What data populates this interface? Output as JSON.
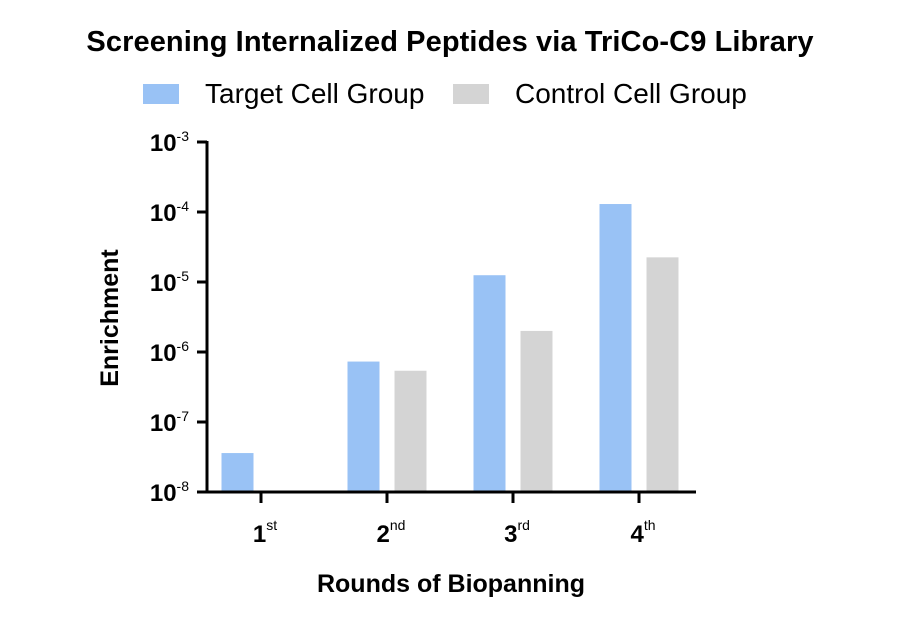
{
  "chart_data": {
    "type": "bar",
    "title": "Screening Internalized Peptides via TriCo-C9 Library",
    "xlabel": "Rounds of Biopanning",
    "ylabel": "Enrichment",
    "yscale": "log",
    "ylim": [
      1e-08,
      0.001
    ],
    "y_ticks": [
      {
        "base": "10",
        "exp": "-8"
      },
      {
        "base": "10",
        "exp": "-7"
      },
      {
        "base": "10",
        "exp": "-6"
      },
      {
        "base": "10",
        "exp": "-5"
      },
      {
        "base": "10",
        "exp": "-4"
      },
      {
        "base": "10",
        "exp": "-3"
      }
    ],
    "categories": [
      {
        "main": "1",
        "sup": "st"
      },
      {
        "main": "2",
        "sup": "nd"
      },
      {
        "main": "3",
        "sup": "rd"
      },
      {
        "main": "4",
        "sup": "th"
      }
    ],
    "series": [
      {
        "name": "Target Cell Group",
        "color": "#99c2f5",
        "values": [
          3.6e-08,
          7.3e-07,
          1.25e-05,
          0.00013
        ]
      },
      {
        "name": "Control Cell Group",
        "color": "#d4d4d4",
        "values": [
          null,
          5.4e-07,
          2e-06,
          2.25e-05
        ]
      }
    ],
    "legend_position": "top",
    "grid": false
  }
}
